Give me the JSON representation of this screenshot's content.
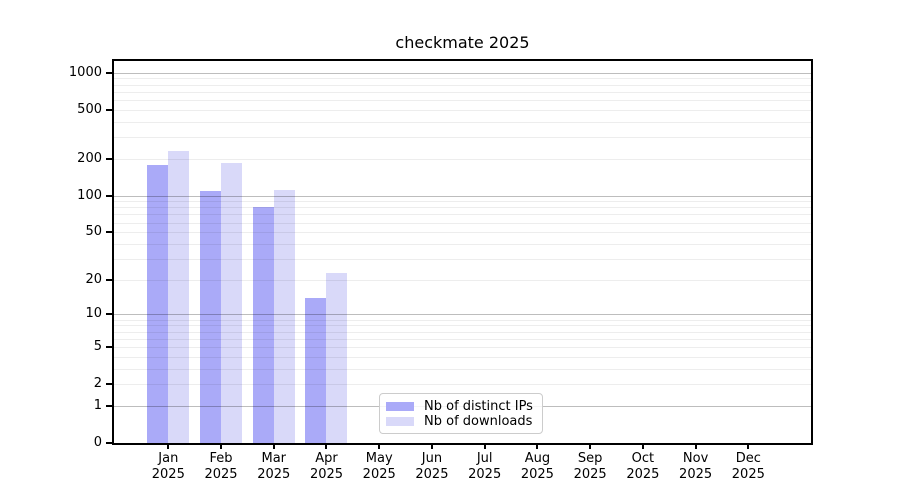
{
  "chart_data": {
    "type": "bar",
    "title": "checkmate 2025",
    "categories": [
      "Jan",
      "Feb",
      "Mar",
      "Apr",
      "May",
      "Jun",
      "Jul",
      "Aug",
      "Sep",
      "Oct",
      "Nov",
      "Dec"
    ],
    "x_tick_second_line": "2025",
    "series": [
      {
        "name": "Nb of distinct IPs",
        "color": "#aaaaf8",
        "values": [
          176,
          108,
          80,
          14,
          null,
          null,
          null,
          null,
          null,
          null,
          null,
          null
        ]
      },
      {
        "name": "Nb of downloads",
        "color": "#d9d9f9",
        "values": [
          229,
          186,
          112,
          23,
          null,
          null,
          null,
          null,
          null,
          null,
          null,
          null
        ]
      }
    ],
    "y_scale": "log1p",
    "ylim": [
      0,
      1240
    ],
    "y_ticks_labeled": [
      0,
      1,
      2,
      5,
      10,
      20,
      50,
      100,
      200,
      500,
      1000
    ],
    "y_major_gridlines": [
      1,
      10,
      100,
      1000
    ],
    "y_minor_gridlines": [
      2,
      3,
      4,
      5,
      6,
      7,
      8,
      9,
      20,
      30,
      40,
      50,
      60,
      70,
      80,
      90,
      200,
      300,
      400,
      500,
      600,
      700,
      800,
      900
    ],
    "grid": "horizontal",
    "legend_position": "lower center",
    "colors": {
      "axis": "#000000",
      "background": "#ffffff",
      "grid_major": "#b8b8b8",
      "grid_minor": "#ebebeb"
    }
  }
}
